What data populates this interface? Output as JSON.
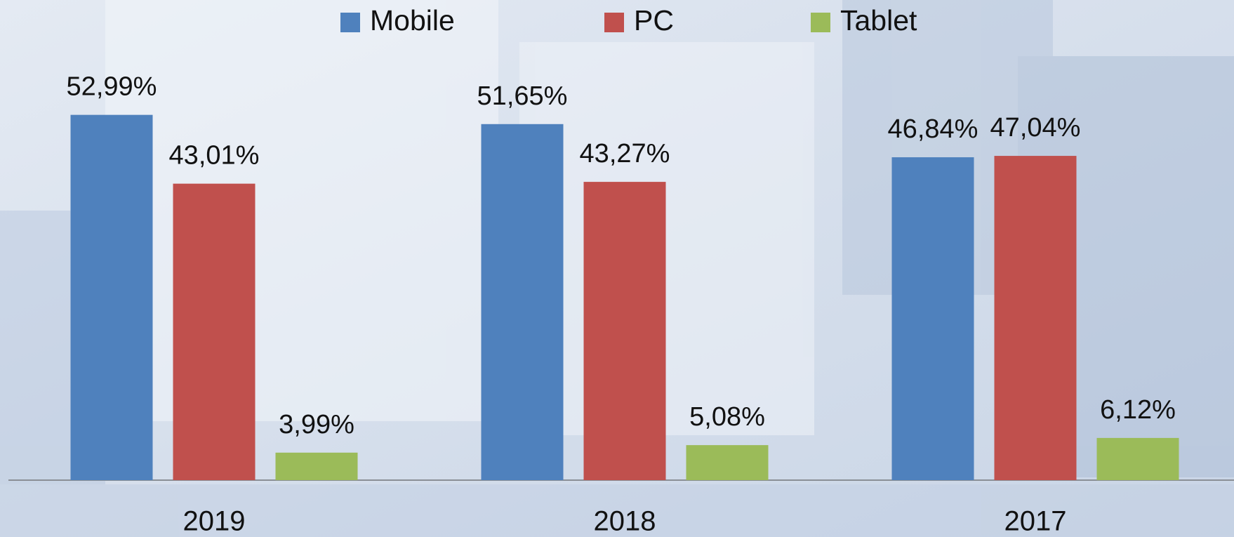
{
  "chart_data": {
    "type": "bar",
    "categories": [
      "2019",
      "2018",
      "2017"
    ],
    "series": [
      {
        "name": "Mobile",
        "color": "#4f81bd",
        "values": [
          52.99,
          51.65,
          46.84
        ],
        "value_labels": [
          "52,99%",
          "51,65%",
          "46,84%"
        ]
      },
      {
        "name": "PC",
        "color": "#c0504d",
        "values": [
          43.01,
          43.27,
          47.04
        ],
        "value_labels": [
          "43,01%",
          "43,27%",
          "47,04%"
        ]
      },
      {
        "name": "Tablet",
        "color": "#9bbb59",
        "values": [
          3.99,
          5.08,
          6.12
        ],
        "value_labels": [
          "3,99%",
          "5,08%",
          "6,12%"
        ]
      }
    ],
    "legend": "top"
  }
}
